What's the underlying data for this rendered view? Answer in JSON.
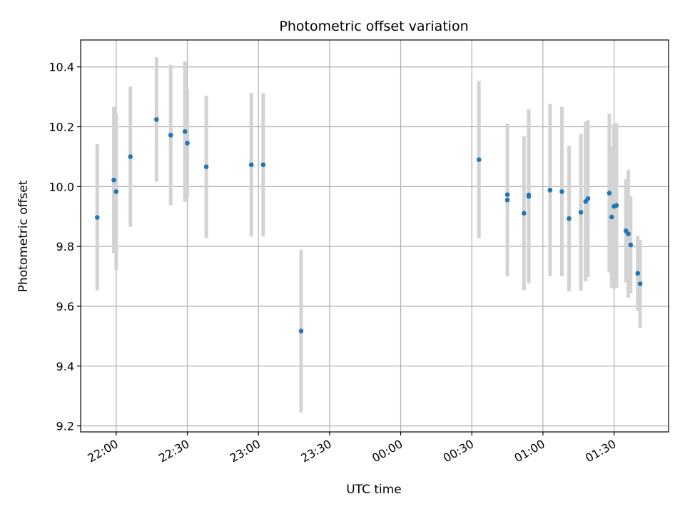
{
  "chart_data": {
    "type": "scatter",
    "title": "Photometric offset variation",
    "xlabel": "UTC time",
    "ylabel": "Photometric offset",
    "grid": true,
    "legend": "none",
    "xlim": [
      "21:45",
      "01:53"
    ],
    "ylim": [
      9.18,
      10.49
    ],
    "x_ticks": [
      "22:00",
      "22:30",
      "23:00",
      "23:30",
      "00:00",
      "00:30",
      "01:00",
      "01:30"
    ],
    "y_ticks": [
      9.2,
      9.4,
      9.6,
      9.8,
      10.0,
      10.2,
      10.4
    ],
    "y_tick_labels": [
      "9.2",
      "9.4",
      "9.6",
      "9.8",
      "10.0",
      "10.2",
      "10.4"
    ],
    "colors": {
      "point": "#1f77b4",
      "errorbar": "#d3d3d3",
      "grid": "#b0b0b0"
    },
    "points": [
      {
        "x": "21:52",
        "y": 9.897,
        "yerr": 0.245
      },
      {
        "x": "21:59",
        "y": 10.022,
        "yerr": 0.245
      },
      {
        "x": "22:00",
        "y": 9.983,
        "yerr": 0.262
      },
      {
        "x": "22:06",
        "y": 10.1,
        "yerr": 0.235
      },
      {
        "x": "22:17",
        "y": 10.224,
        "yerr": 0.208
      },
      {
        "x": "22:23",
        "y": 10.172,
        "yerr": 0.235
      },
      {
        "x": "22:29",
        "y": 10.184,
        "yerr": 0.235
      },
      {
        "x": "22:30",
        "y": 10.145,
        "yerr": 0.18
      },
      {
        "x": "22:38",
        "y": 10.066,
        "yerr": 0.238
      },
      {
        "x": "22:57",
        "y": 10.073,
        "yerr": 0.24
      },
      {
        "x": "23:02",
        "y": 10.073,
        "yerr": 0.24
      },
      {
        "x": "23:18",
        "y": 9.517,
        "yerr": 0.272
      },
      {
        "x": "00:33",
        "y": 10.09,
        "yerr": 0.263
      },
      {
        "x": "00:45",
        "y": 9.973,
        "yerr": 0.237
      },
      {
        "x": "00:45",
        "y": 9.955,
        "yerr": 0.255
      },
      {
        "x": "00:52",
        "y": 9.911,
        "yerr": 0.257
      },
      {
        "x": "00:54",
        "y": 9.972,
        "yerr": 0.287
      },
      {
        "x": "00:54",
        "y": 9.967,
        "yerr": 0.29
      },
      {
        "x": "01:03",
        "y": 9.988,
        "yerr": 0.288
      },
      {
        "x": "01:08",
        "y": 9.983,
        "yerr": 0.283
      },
      {
        "x": "01:11",
        "y": 9.893,
        "yerr": 0.243
      },
      {
        "x": "01:16",
        "y": 9.914,
        "yerr": 0.262
      },
      {
        "x": "01:18",
        "y": 9.95,
        "yerr": 0.267
      },
      {
        "x": "01:19",
        "y": 9.96,
        "yerr": 0.262
      },
      {
        "x": "01:28",
        "y": 9.978,
        "yerr": 0.265
      },
      {
        "x": "01:29",
        "y": 9.898,
        "yerr": 0.237
      },
      {
        "x": "01:30",
        "y": 9.934,
        "yerr": 0.275
      },
      {
        "x": "01:31",
        "y": 9.937,
        "yerr": 0.275
      },
      {
        "x": "01:35",
        "y": 9.852,
        "yerr": 0.172
      },
      {
        "x": "01:36",
        "y": 9.842,
        "yerr": 0.213
      },
      {
        "x": "01:37",
        "y": 9.805,
        "yerr": 0.162
      },
      {
        "x": "01:40",
        "y": 9.71,
        "yerr": 0.125
      },
      {
        "x": "01:41",
        "y": 9.675,
        "yerr": 0.147
      }
    ]
  }
}
